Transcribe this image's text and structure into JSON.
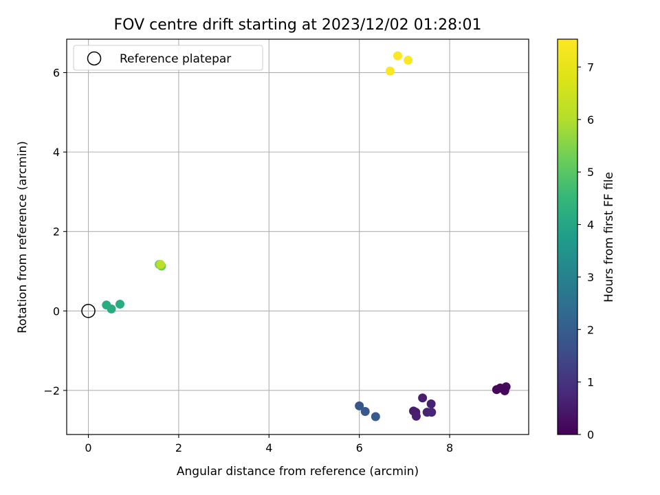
{
  "chart_data": {
    "type": "scatter",
    "title": "FOV centre drift starting at 2023/12/02 01:28:01",
    "xlabel": "Angular distance from reference (arcmin)",
    "ylabel": "Rotation from reference (arcmin)",
    "xlim": [
      -0.48,
      9.75
    ],
    "ylim": [
      -3.11,
      6.84
    ],
    "xticks": [
      0,
      2,
      4,
      6,
      8
    ],
    "yticks": [
      -2,
      0,
      2,
      4,
      6
    ],
    "grid": true,
    "legend": {
      "position": "upper-left",
      "entries": [
        {
          "label": "Reference platepar",
          "marker": "hollow-circle"
        }
      ]
    },
    "reference_point": {
      "x": 0,
      "y": 0
    },
    "colorbar": {
      "label": "Hours from first FF file",
      "colormap": "viridis",
      "range": [
        0,
        7.53
      ],
      "ticks": [
        0,
        1,
        2,
        3,
        4,
        5,
        6,
        7
      ]
    },
    "points": [
      {
        "x": 9.04,
        "y": -1.98,
        "c": 0.1
      },
      {
        "x": 9.12,
        "y": -1.94,
        "c": 0.15
      },
      {
        "x": 9.25,
        "y": -1.91,
        "c": 0.2
      },
      {
        "x": 9.22,
        "y": -2.01,
        "c": 0.12
      },
      {
        "x": 7.4,
        "y": -2.19,
        "c": 0.55
      },
      {
        "x": 7.59,
        "y": -2.34,
        "c": 0.6
      },
      {
        "x": 7.2,
        "y": -2.52,
        "c": 0.5
      },
      {
        "x": 7.25,
        "y": -2.55,
        "c": 0.55
      },
      {
        "x": 7.5,
        "y": -2.55,
        "c": 0.65
      },
      {
        "x": 7.6,
        "y": -2.55,
        "c": 0.7
      },
      {
        "x": 7.26,
        "y": -2.65,
        "c": 0.6
      },
      {
        "x": 6.0,
        "y": -2.39,
        "c": 1.8
      },
      {
        "x": 6.13,
        "y": -2.53,
        "c": 1.85
      },
      {
        "x": 6.36,
        "y": -2.66,
        "c": 1.9
      },
      {
        "x": 0.4,
        "y": 0.15,
        "c": 4.15
      },
      {
        "x": 0.51,
        "y": 0.05,
        "c": 4.15
      },
      {
        "x": 0.7,
        "y": 0.17,
        "c": 4.15
      },
      {
        "x": 1.57,
        "y": 1.17,
        "c": 5.1
      },
      {
        "x": 1.62,
        "y": 1.13,
        "c": 5.2
      },
      {
        "x": 1.6,
        "y": 1.17,
        "c": 6.2
      },
      {
        "x": 6.85,
        "y": 6.42,
        "c": 7.5
      },
      {
        "x": 7.08,
        "y": 6.31,
        "c": 7.5
      },
      {
        "x": 6.68,
        "y": 6.04,
        "c": 7.5
      }
    ]
  }
}
